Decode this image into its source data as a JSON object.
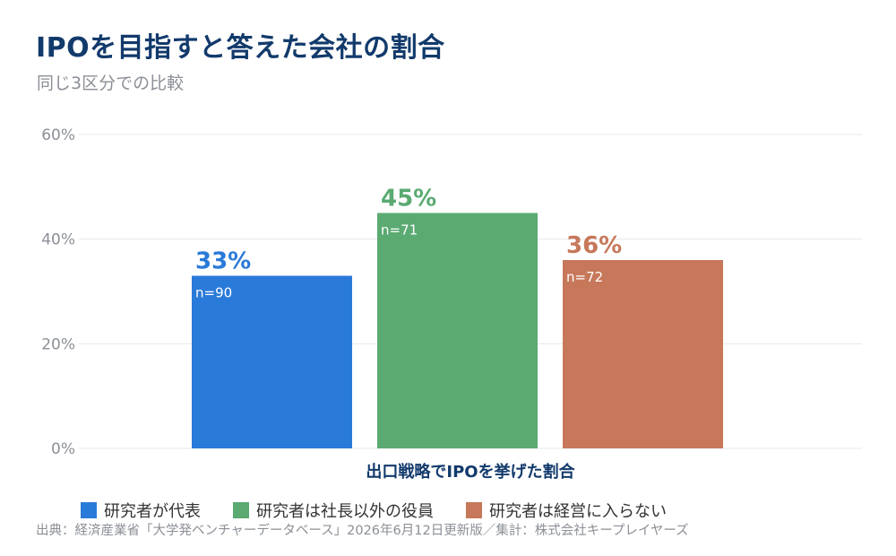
{
  "header": {
    "title": "IPOを目指すと答えた会社の割合",
    "subtitle": "同じ3区分での比較"
  },
  "chart_data": {
    "type": "bar",
    "xlabel": "出口戦略でIPOを挙げた割合",
    "ylim": [
      0,
      60
    ],
    "y_ticks": [
      0,
      20,
      40,
      60
    ],
    "y_tick_labels": [
      "0%",
      "20%",
      "40%",
      "60%"
    ],
    "grid": true,
    "legend_position": "bottom",
    "series": [
      {
        "name": "研究者が代表",
        "value": 33,
        "value_label": "33%",
        "n_label": "n=90",
        "color": "#2a7ad9"
      },
      {
        "name": "研究者は社長以外の役員",
        "value": 45,
        "value_label": "45%",
        "n_label": "n=71",
        "color": "#5aaa72"
      },
      {
        "name": "研究者は経営に入らない",
        "value": 36,
        "value_label": "36%",
        "n_label": "n=72",
        "color": "#c7785a"
      }
    ]
  },
  "footer": {
    "source": "出典：経済産業省「大学発ベンチャーデータベース」2026年6月12日更新版／集計：株式会社キープレイヤーズ"
  }
}
